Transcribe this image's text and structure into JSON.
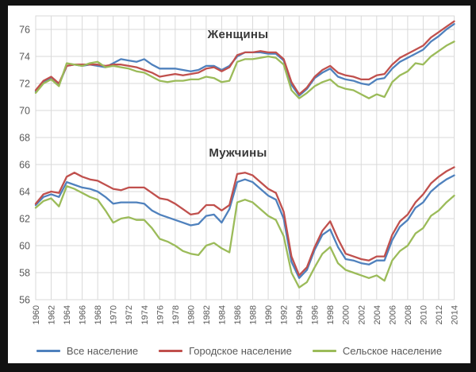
{
  "window": {
    "frame_color": "#121212",
    "panel_color": "#ffffff"
  },
  "chart_data": {
    "type": "line",
    "annotations": [
      {
        "text": "Женщины"
      },
      {
        "text": "Мужчины"
      }
    ],
    "xlim": [
      1960,
      2014
    ],
    "ylim": [
      56,
      77
    ],
    "grid": true,
    "gridline_color": "#d9d9d9",
    "tick_label_color": "#595959",
    "title_color": "#383838",
    "legend_position": "bottom",
    "x_years": [
      1960,
      1961,
      1962,
      1963,
      1964,
      1965,
      1966,
      1967,
      1968,
      1969,
      1970,
      1971,
      1972,
      1973,
      1974,
      1975,
      1976,
      1977,
      1978,
      1979,
      1980,
      1981,
      1982,
      1983,
      1984,
      1985,
      1986,
      1987,
      1988,
      1989,
      1990,
      1991,
      1992,
      1993,
      1994,
      1995,
      1996,
      1997,
      1998,
      1999,
      2000,
      2001,
      2002,
      2003,
      2004,
      2005,
      2006,
      2007,
      2008,
      2009,
      2010,
      2011,
      2012,
      2013,
      2014
    ],
    "x_tick_labels": [
      "1960",
      "1962",
      "1964",
      "1966",
      "1968",
      "1970",
      "1972",
      "1974",
      "1976",
      "1978",
      "1980",
      "1982",
      "1984",
      "1986",
      "1988",
      "1990",
      "1992",
      "1994",
      "1996",
      "1998",
      "2000",
      "2002",
      "2004",
      "2006",
      "2008",
      "2010",
      "2012",
      "2014"
    ],
    "y_tick_labels": [
      "56",
      "58",
      "60",
      "62",
      "64",
      "66",
      "68",
      "70",
      "72",
      "74",
      "76"
    ],
    "legend": [
      {
        "label": "Все население",
        "color": "#4f81bd"
      },
      {
        "label": "Городское население",
        "color": "#c0504d"
      },
      {
        "label": "Сельское население",
        "color": "#9bbb59"
      }
    ],
    "groups": [
      {
        "name": "Женщины",
        "series": [
          {
            "name": "Все население",
            "color": "#4f81bd",
            "values": [
              71.4,
              72.1,
              72.4,
              71.9,
              73.3,
              73.4,
              73.3,
              73.4,
              73.3,
              73.2,
              73.5,
              73.8,
              73.7,
              73.6,
              73.8,
              73.4,
              73.1,
              73.1,
              73.1,
              73.0,
              72.9,
              73.0,
              73.3,
              73.3,
              73.0,
              73.3,
              74.0,
              74.3,
              74.3,
              74.3,
              74.2,
              74.2,
              73.7,
              71.9,
              71.1,
              71.6,
              72.4,
              72.8,
              73.1,
              72.5,
              72.3,
              72.2,
              72.0,
              71.9,
              72.3,
              72.4,
              73.1,
              73.6,
              73.9,
              74.2,
              74.5,
              75.1,
              75.5,
              76.0,
              76.4
            ]
          },
          {
            "name": "Городское население",
            "color": "#c0504d",
            "values": [
              71.5,
              72.2,
              72.5,
              72.0,
              73.3,
              73.4,
              73.4,
              73.4,
              73.4,
              73.3,
              73.4,
              73.4,
              73.3,
              73.2,
              73.0,
              72.8,
              72.5,
              72.6,
              72.7,
              72.6,
              72.7,
              72.8,
              73.1,
              73.2,
              72.9,
              73.2,
              74.1,
              74.3,
              74.3,
              74.4,
              74.3,
              74.3,
              73.8,
              72.1,
              71.2,
              71.7,
              72.5,
              73.0,
              73.3,
              72.8,
              72.6,
              72.5,
              72.3,
              72.3,
              72.6,
              72.7,
              73.4,
              73.9,
              74.2,
              74.5,
              74.8,
              75.4,
              75.8,
              76.2,
              76.6
            ]
          },
          {
            "name": "Сельское население",
            "color": "#9bbb59",
            "values": [
              71.3,
              72.0,
              72.3,
              71.8,
              73.5,
              73.4,
              73.3,
              73.5,
              73.6,
              73.2,
              73.3,
              73.2,
              73.1,
              72.9,
              72.8,
              72.5,
              72.2,
              72.1,
              72.2,
              72.2,
              72.3,
              72.3,
              72.5,
              72.4,
              72.1,
              72.2,
              73.6,
              73.8,
              73.8,
              73.9,
              74.0,
              73.9,
              73.4,
              71.5,
              70.9,
              71.3,
              71.8,
              72.1,
              72.3,
              71.8,
              71.6,
              71.5,
              71.2,
              70.9,
              71.2,
              71.0,
              72.1,
              72.6,
              72.9,
              73.5,
              73.4,
              74.0,
              74.4,
              74.8,
              75.1
            ]
          }
        ]
      },
      {
        "name": "Мужчины",
        "series": [
          {
            "name": "Все население",
            "color": "#4f81bd",
            "values": [
              63.0,
              63.6,
              63.8,
              63.6,
              64.7,
              64.5,
              64.3,
              64.2,
              64.0,
              63.6,
              63.1,
              63.2,
              63.2,
              63.2,
              63.1,
              62.6,
              62.3,
              62.1,
              61.9,
              61.7,
              61.5,
              61.6,
              62.2,
              62.3,
              61.7,
              62.7,
              64.7,
              64.9,
              64.7,
              64.2,
              63.7,
              63.4,
              62.0,
              58.8,
              57.6,
              58.2,
              59.7,
              60.8,
              61.2,
              59.9,
              59.0,
              58.9,
              58.7,
              58.6,
              58.9,
              58.9,
              60.4,
              61.4,
              61.9,
              62.8,
              63.2,
              64.0,
              64.5,
              64.9,
              65.2
            ]
          },
          {
            "name": "Городское население",
            "color": "#c0504d",
            "values": [
              63.1,
              63.8,
              64.0,
              63.9,
              65.1,
              65.4,
              65.1,
              64.9,
              64.8,
              64.5,
              64.2,
              64.1,
              64.3,
              64.3,
              64.3,
              63.9,
              63.5,
              63.4,
              63.1,
              62.7,
              62.3,
              62.4,
              63.0,
              63.0,
              62.6,
              63.0,
              65.3,
              65.4,
              65.2,
              64.7,
              64.2,
              63.9,
              62.5,
              59.2,
              57.8,
              58.4,
              59.9,
              61.1,
              61.8,
              60.5,
              59.4,
              59.2,
              59.0,
              58.9,
              59.2,
              59.2,
              60.8,
              61.8,
              62.3,
              63.2,
              63.8,
              64.6,
              65.1,
              65.5,
              65.8
            ]
          },
          {
            "name": "Сельское население",
            "color": "#9bbb59",
            "values": [
              62.8,
              63.3,
              63.5,
              62.9,
              64.4,
              64.2,
              63.9,
              63.6,
              63.4,
              62.6,
              61.7,
              62.0,
              62.1,
              61.9,
              61.9,
              61.3,
              60.5,
              60.3,
              60.0,
              59.6,
              59.4,
              59.3,
              60.0,
              60.2,
              59.8,
              59.5,
              63.2,
              63.4,
              63.2,
              62.7,
              62.2,
              61.9,
              60.7,
              58.0,
              56.9,
              57.3,
              58.4,
              59.4,
              59.9,
              58.7,
              58.2,
              58.0,
              57.8,
              57.6,
              57.8,
              57.4,
              58.9,
              59.6,
              60.0,
              60.9,
              61.3,
              62.2,
              62.6,
              63.2,
              63.7
            ]
          }
        ]
      }
    ]
  }
}
